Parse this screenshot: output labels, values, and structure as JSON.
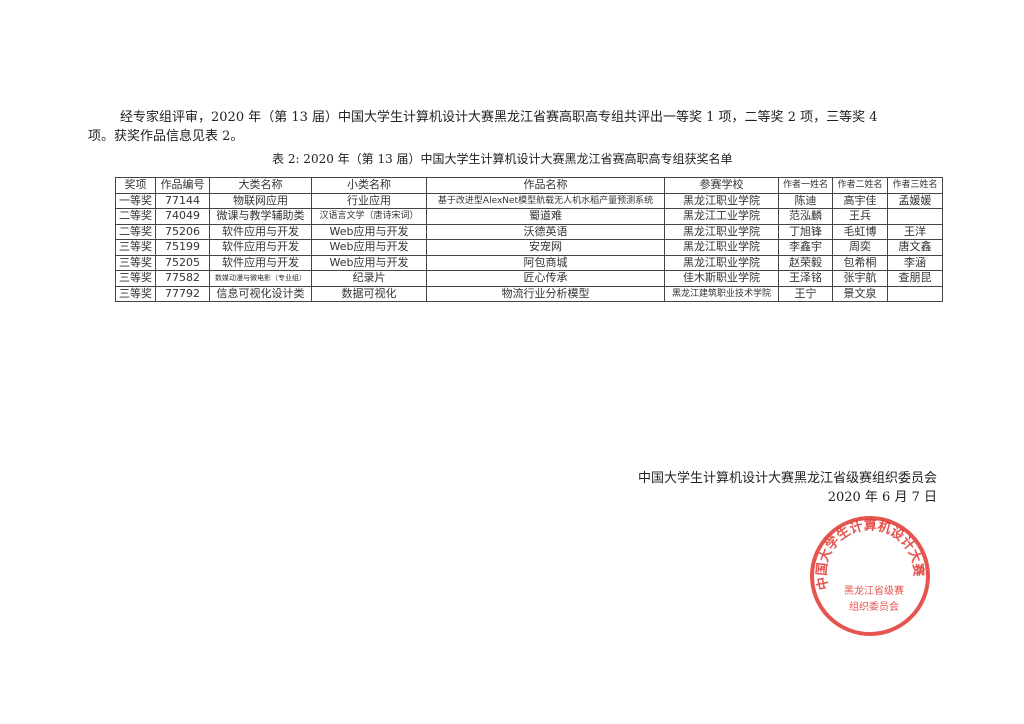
{
  "intro": {
    "line1": "经专家组评审，2020 年（第 13 届）中国大学生计算机设计大赛黑龙江省赛高职高专组共评出一等奖 1 项，二等奖 2 项，三等奖 4",
    "line2": "项。获奖作品信息见表 2。"
  },
  "caption": "表 2:   2020 年（第 13 届）中国大学生计算机设计大赛黑龙江省赛高职高专组获奖名单",
  "table": {
    "headers": [
      "奖项",
      "作品编号",
      "大类名称",
      "小类名称",
      "作品名称",
      "参赛学校",
      "作者一姓名",
      "作者二姓名",
      "作者三姓名"
    ],
    "rows": [
      [
        "一等奖",
        "77144",
        "物联网应用",
        "行业应用",
        "基于改进型AlexNet模型航载无人机水稻产量预测系统",
        "黑龙江职业学院",
        "陈迪",
        "高宇佳",
        "孟媛媛"
      ],
      [
        "二等奖",
        "74049",
        "微课与教学辅助类",
        "汉语言文学（唐诗宋词）",
        "蜀道难",
        "黑龙江工业学院",
        "范泓麟",
        "王兵",
        ""
      ],
      [
        "二等奖",
        "75206",
        "软件应用与开发",
        "Web应用与开发",
        "沃德英语",
        "黑龙江职业学院",
        "丁旭锋",
        "毛虹博",
        "王洋"
      ],
      [
        "三等奖",
        "75199",
        "软件应用与开发",
        "Web应用与开发",
        "安宠网",
        "黑龙江职业学院",
        "李鑫宇",
        "周奕",
        "唐文鑫"
      ],
      [
        "三等奖",
        "75205",
        "软件应用与开发",
        "Web应用与开发",
        "阿包商城",
        "黑龙江职业学院",
        "赵荣毅",
        "包希桐",
        "李涵"
      ],
      [
        "三等奖",
        "77582",
        "数媒动漫与微电影（专业组）",
        "纪录片",
        "匠心传承",
        "佳木斯职业学院",
        "王泽铭",
        "张宇航",
        "查朋昆"
      ],
      [
        "三等奖",
        "77792",
        "信息可视化设计类",
        "数据可视化",
        "物流行业分析模型",
        "黑龙江建筑职业技术学院",
        "王宁",
        "景文泉",
        ""
      ]
    ]
  },
  "signature": {
    "org": "中国大学生计算机设计大赛黑龙江省级赛组织委员会",
    "date": "2020 年 6 月 7 日"
  },
  "stamp": {
    "outer_text": "中国大学生计算机设计大赛",
    "inner_text1": "黑龙江省级赛",
    "inner_text2": "组织委员会",
    "color": "#e0362f"
  }
}
